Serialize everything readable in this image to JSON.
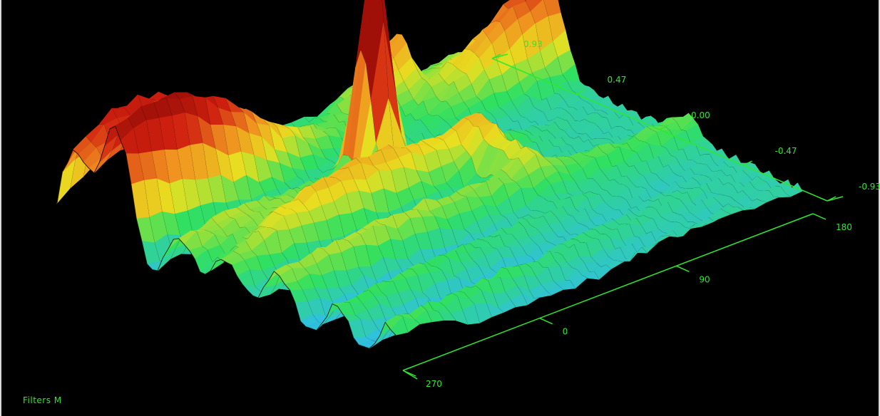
{
  "footer": {
    "filter_label": "Filters M"
  },
  "chart_data": {
    "type": "surface",
    "title": "",
    "grid": false,
    "axis_back": {
      "ticks": [
        0.93,
        0.47,
        0.0,
        -0.47,
        -0.93
      ],
      "tick_labels": [
        "0.93",
        "0.47",
        "0.00",
        "-0.47",
        "-0.93"
      ]
    },
    "axis_front": {
      "ticks": [
        270,
        0,
        90,
        180
      ],
      "tick_labels": [
        "270",
        "0",
        "90",
        "180"
      ]
    },
    "colormap": [
      "#1030c0",
      "#30c0e0",
      "#30e060",
      "#e8e020",
      "#f09020",
      "#d02010",
      "#a01008"
    ],
    "surface_features": [
      {
        "feature": "central narrow peak",
        "height": 1.0
      },
      {
        "feature": "back-left ridge",
        "height": 0.62
      },
      {
        "feature": "secondary right peak",
        "height": 0.3
      }
    ]
  }
}
